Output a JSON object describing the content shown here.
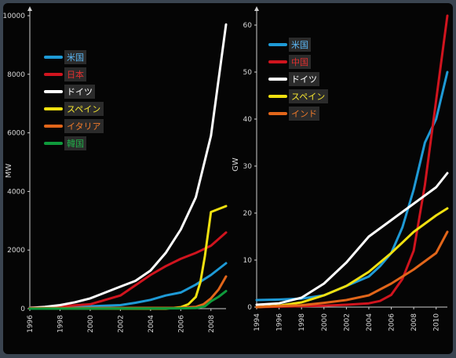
{
  "chart_data": [
    {
      "type": "line",
      "title": "",
      "xlabel": "",
      "ylabel": "MW",
      "xlim": [
        1996,
        2009
      ],
      "ylim": [
        0,
        10000
      ],
      "yticks": [
        0,
        2000,
        4000,
        6000,
        8000,
        10000
      ],
      "xticks": [
        1996,
        1998,
        2000,
        2002,
        2004,
        2006,
        2008
      ],
      "grid": false,
      "legend_position": "top-left",
      "series": [
        {
          "name": "米国",
          "color": "#1e9ad6",
          "label_color": "#5ab4f0",
          "x": [
            1996,
            1998,
            2000,
            2002,
            2003,
            2004,
            2005,
            2006,
            2007,
            2008,
            2009
          ],
          "y": [
            40,
            60,
            80,
            120,
            200,
            300,
            450,
            550,
            820,
            1150,
            1550
          ]
        },
        {
          "name": "日本",
          "color": "#d0141e",
          "label_color": "#e03030",
          "x": [
            1996,
            1998,
            2000,
            2002,
            2003,
            2004,
            2005,
            2006,
            2007,
            2008,
            2009
          ],
          "y": [
            30,
            80,
            150,
            450,
            800,
            1150,
            1450,
            1700,
            1900,
            2150,
            2600
          ]
        },
        {
          "name": "ドイツ",
          "color": "#ffffff",
          "label_color": "#ffffff",
          "x": [
            1996,
            1997,
            1998,
            1999,
            2000,
            2001,
            2002,
            2003,
            2004,
            2005,
            2006,
            2007,
            2008,
            2009
          ],
          "y": [
            20,
            60,
            120,
            220,
            350,
            550,
            750,
            950,
            1300,
            1900,
            2700,
            3800,
            5900,
            9700
          ]
        },
        {
          "name": "スペイン",
          "color": "#f0e010",
          "label_color": "#f5e530",
          "x": [
            1996,
            2004,
            2005,
            2006,
            2006.5,
            2007,
            2007.3,
            2007.6,
            2008,
            2009
          ],
          "y": [
            0,
            0,
            0,
            50,
            150,
            400,
            900,
            1800,
            3300,
            3500
          ]
        },
        {
          "name": "イタリア",
          "color": "#e2661a",
          "label_color": "#f07a2a",
          "x": [
            1996,
            2006,
            2007,
            2007.5,
            2008,
            2008.5,
            2009
          ],
          "y": [
            20,
            30,
            60,
            150,
            350,
            650,
            1100
          ]
        },
        {
          "name": "韓国",
          "color": "#0f9a3c",
          "label_color": "#22b04a",
          "x": [
            1996,
            2006,
            2007,
            2007.6,
            2008,
            2008.5,
            2009
          ],
          "y": [
            0,
            10,
            20,
            80,
            250,
            400,
            600
          ]
        }
      ]
    },
    {
      "type": "line",
      "title": "",
      "xlabel": "",
      "ylabel": "GW",
      "xlim": [
        1994,
        2011
      ],
      "ylim": [
        0,
        62
      ],
      "yticks": [
        0,
        10,
        20,
        30,
        40,
        50,
        60
      ],
      "xticks": [
        1994,
        1996,
        1998,
        2000,
        2002,
        2004,
        2006,
        2008,
        2010
      ],
      "grid": false,
      "legend_position": "top-left",
      "series": [
        {
          "name": "米国",
          "color": "#1e9ad6",
          "label_color": "#5ab4f0",
          "x": [
            1994,
            1996,
            1998,
            2000,
            2002,
            2004,
            2005,
            2006,
            2007,
            2008,
            2009,
            2010,
            2011
          ],
          "y": [
            1.5,
            1.6,
            1.8,
            2.5,
            4.5,
            6.5,
            8.7,
            11.5,
            17,
            25,
            35,
            40,
            50
          ]
        },
        {
          "name": "中国",
          "color": "#d0141e",
          "label_color": "#e03030",
          "x": [
            1994,
            2000,
            2002,
            2004,
            2005,
            2006,
            2007,
            2008,
            2009,
            2010,
            2011
          ],
          "y": [
            0,
            0.3,
            0.5,
            0.8,
            1.3,
            2.6,
            6,
            12,
            26,
            44,
            62
          ]
        },
        {
          "name": "ドイツ",
          "color": "#ffffff",
          "label_color": "#ffffff",
          "x": [
            1994,
            1996,
            1998,
            2000,
            2002,
            2004,
            2006,
            2008,
            2010,
            2011
          ],
          "y": [
            0.5,
            0.8,
            2,
            5,
            9.5,
            15,
            18.5,
            22,
            25.5,
            28.5
          ]
        },
        {
          "name": "スペイン",
          "color": "#f0e010",
          "label_color": "#f5e530",
          "x": [
            1994,
            1996,
            1998,
            2000,
            2002,
            2004,
            2006,
            2008,
            2010,
            2011
          ],
          "y": [
            0,
            0.3,
            1.0,
            2.5,
            4.5,
            7.5,
            11.5,
            16,
            19.5,
            21
          ]
        },
        {
          "name": "インド",
          "color": "#e2661a",
          "label_color": "#f07a2a",
          "x": [
            1994,
            1996,
            1998,
            2000,
            2002,
            2004,
            2006,
            2008,
            2010,
            2011
          ],
          "y": [
            0,
            0.2,
            0.4,
            0.9,
            1.5,
            2.5,
            5,
            8,
            11.5,
            16
          ]
        }
      ]
    }
  ]
}
